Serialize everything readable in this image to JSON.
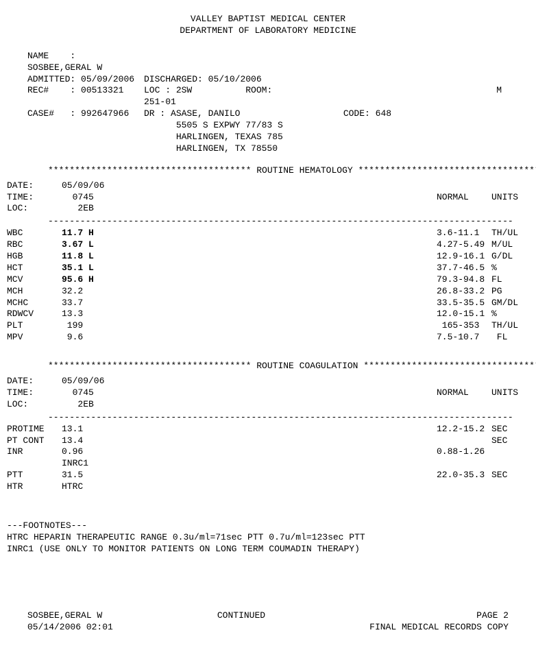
{
  "header": {
    "line1": "VALLEY BAPTIST MEDICAL CENTER",
    "line2": "DEPARTMENT OF LABORATORY MEDICINE"
  },
  "patient": {
    "name_label": "NAME",
    "name": "SOSBEE,GERAL W",
    "admitted_label": "ADMITTED:",
    "admitted": "05/09/2006",
    "discharged_label": "DISCHARGED:",
    "discharged": "05/10/2006",
    "rec_label": "REC#",
    "rec": "00513321",
    "loc_label": "LOC :",
    "loc": "2SW",
    "room_label": "ROOM:",
    "room": "251-01",
    "sex": "M",
    "case_label": "CASE#",
    "case": "992647966",
    "dr_label": "DR  :",
    "dr": "ASASE, DANILO",
    "code_label": "CODE:",
    "code": "648",
    "addr1": "5505 S EXPWY 77/83 S",
    "addr2": "HARLINGEN, TEXAS 785",
    "addr3": "HARLINGEN, TX 78550"
  },
  "stars": "**************************************",
  "sec1_title": " ROUTINE HEMATOLOGY ",
  "sec2_title": " ROUTINE COAGULATION ",
  "col_normal": "NORMAL",
  "col_units": "UNITS",
  "meta": {
    "date_label": "DATE:",
    "time_label": "TIME:",
    "loc_label": "LOC:",
    "date": "05/09/06",
    "time": "0745",
    "loc": "2EB"
  },
  "hema": {
    "rows": [
      {
        "label": "WBC",
        "value": "11.7 H",
        "bold": true,
        "normal": "3.6-11.1",
        "units": "TH/UL"
      },
      {
        "label": "RBC",
        "value": "3.67 L",
        "bold": true,
        "normal": "4.27-5.49",
        "units": "M/UL"
      },
      {
        "label": "HGB",
        "value": "11.8 L",
        "bold": true,
        "normal": "12.9-16.1",
        "units": "G/DL"
      },
      {
        "label": "HCT",
        "value": "35.1 L",
        "bold": true,
        "normal": "37.7-46.5",
        "units": "%"
      },
      {
        "label": "MCV",
        "value": "95.6 H",
        "bold": true,
        "normal": "79.3-94.8",
        "units": "FL"
      },
      {
        "label": "MCH",
        "value": "32.2",
        "bold": false,
        "normal": "26.8-33.2",
        "units": "PG"
      },
      {
        "label": "MCHC",
        "value": "33.7",
        "bold": false,
        "normal": "33.5-35.5",
        "units": "GM/DL"
      },
      {
        "label": "RDWCV",
        "value": "13.3",
        "bold": false,
        "normal": "12.0-15.1",
        "units": "%"
      },
      {
        "label": "PLT",
        "value": " 199",
        "bold": false,
        "normal": " 165-353",
        "units": "TH/UL"
      },
      {
        "label": "MPV",
        "value": " 9.6",
        "bold": false,
        "normal": "7.5-10.7",
        "units": " FL"
      }
    ]
  },
  "coag": {
    "rows": [
      {
        "label": "PROTIME",
        "value": "13.1",
        "normal": "12.2-15.2",
        "units": "SEC"
      },
      {
        "label": "PT CONT",
        "value": "13.4",
        "normal": "",
        "units": "SEC"
      },
      {
        "label": "INR",
        "value": "0.96",
        "normal": "0.88-1.26",
        "units": ""
      },
      {
        "label": "",
        "value": "INRC1",
        "normal": "",
        "units": ""
      },
      {
        "label": "PTT",
        "value": "31.5",
        "normal": "22.0-35.3",
        "units": "SEC"
      },
      {
        "label": "HTR",
        "value": "HTRC",
        "normal": "",
        "units": ""
      }
    ]
  },
  "footnotes": {
    "title": "---FOOTNOTES---",
    "l1": "HTRC   HEPARIN THERAPEUTIC RANGE 0.3u/ml=71sec PTT  0.7u/ml=123sec PTT",
    "l2": "INRC1  (USE ONLY TO MONITOR PATIENTS ON LONG TERM COUMADIN THERAPY)"
  },
  "footer": {
    "name": "SOSBEE,GERAL W",
    "dt": "05/14/2006 02:01",
    "continued": "CONTINUED",
    "page": "PAGE 2",
    "final": "FINAL MEDICAL RECORDS COPY"
  },
  "dash_line": "---------------------------------------------------------------------------------------"
}
